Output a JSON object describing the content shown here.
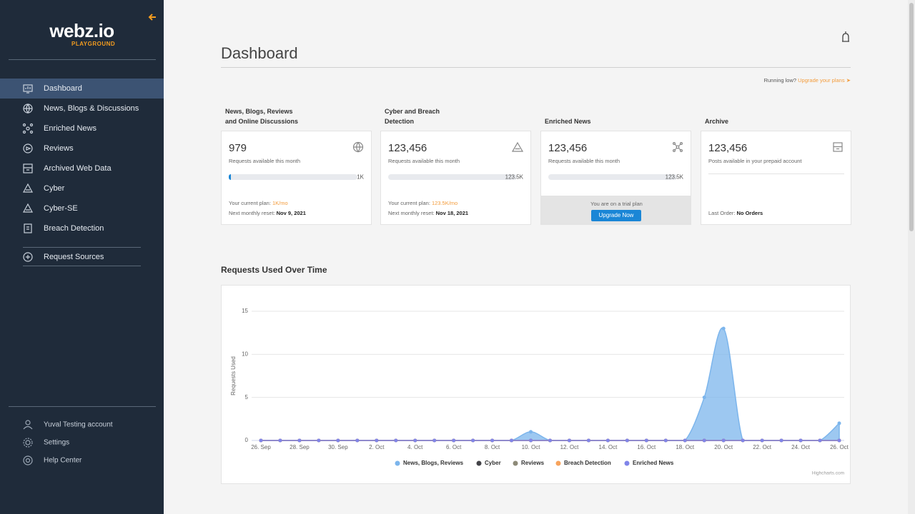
{
  "sidebar": {
    "logo": "webz.io",
    "logo_sub": "PLAYGROUND",
    "nav": [
      "Dashboard",
      "News, Blogs & Discussions",
      "Enriched News",
      "Reviews",
      "Archived Web Data",
      "Cyber",
      "Cyber-SE",
      "Breach Detection"
    ],
    "request_sources": "Request Sources",
    "footer": [
      "Yuval Testing account",
      "Settings",
      "Help Center"
    ]
  },
  "header": {
    "title": "Dashboard",
    "notice": "Running low?",
    "notice_link": "Upgrade your plans"
  },
  "cards": [
    {
      "title": "News, Blogs, Reviews and Online Discussions",
      "value": "979",
      "caption": "Requests available this month",
      "limit": "1K",
      "plan_label": "Your current plan:",
      "plan": "1K/mo",
      "reset_label": "Next monthly reset:",
      "reset": "Nov 9, 2021"
    },
    {
      "title": "Cyber and Breach Detection",
      "value": "123,456",
      "caption": "Requests available this month",
      "limit": "123.5K",
      "plan_label": "Your current plan:",
      "plan": "123.5K/mo",
      "reset_label": "Next monthly reset:",
      "reset": "Nov 18, 2021"
    },
    {
      "title": "Enriched News",
      "value": "123,456",
      "caption": "Requests available this month",
      "limit": "123.5K",
      "trial": "You are on a trial plan",
      "button": "Upgrade Now"
    },
    {
      "title": "Archive",
      "value": "123,456",
      "caption": "Posts available in your prepaid account",
      "order_label": "Last Order:",
      "order": "No Orders"
    }
  ],
  "chart_data": {
    "type": "area",
    "title": "Requests Used Over Time",
    "y_label": "Requests Used",
    "credits": "Highcharts.com",
    "categories": [
      "26. Sep",
      null,
      "28. Sep",
      null,
      "30. Sep",
      null,
      "2. Oct",
      null,
      "4. Oct",
      null,
      "6. Oct",
      null,
      "8. Oct",
      null,
      "10. Oct",
      null,
      "12. Oct",
      null,
      "14. Oct",
      null,
      "16. Oct",
      null,
      "18. Oct",
      null,
      "20. Oct",
      null,
      "22. Oct",
      null,
      "24. Oct",
      null,
      "26. Oct"
    ],
    "series": [
      {
        "name": "News, Blogs, Reviews",
        "color": "#7cb5ec",
        "values": [
          0,
          0,
          0,
          0,
          0,
          0,
          0,
          0,
          0,
          0,
          0,
          0,
          0,
          0,
          1,
          0,
          0,
          0,
          0,
          0,
          0,
          0,
          0,
          5,
          13,
          0,
          0,
          0,
          0,
          0,
          2
        ]
      },
      {
        "name": "Cyber",
        "color": "#434348",
        "values": [
          0,
          0,
          0,
          0,
          0,
          0,
          0,
          0,
          0,
          0,
          0,
          0,
          0,
          0,
          0,
          0,
          0,
          0,
          0,
          0,
          0,
          0,
          0,
          0,
          0,
          0,
          0,
          0,
          0,
          0,
          0
        ]
      },
      {
        "name": "Reviews",
        "color": "#8d8a78",
        "values": [
          0,
          0,
          0,
          0,
          0,
          0,
          0,
          0,
          0,
          0,
          0,
          0,
          0,
          0,
          0,
          0,
          0,
          0,
          0,
          0,
          0,
          0,
          0,
          0,
          0,
          0,
          0,
          0,
          0,
          0,
          0
        ]
      },
      {
        "name": "Breach Detection",
        "color": "#f7a35c",
        "values": [
          0,
          0,
          0,
          0,
          0,
          0,
          0,
          0,
          0,
          0,
          0,
          0,
          0,
          0,
          0,
          0,
          0,
          0,
          0,
          0,
          0,
          0,
          0,
          0,
          0,
          0,
          0,
          0,
          0,
          0,
          0
        ]
      },
      {
        "name": "Enriched News",
        "color": "#8085e9",
        "values": [
          0,
          0,
          0,
          0,
          0,
          0,
          0,
          0,
          0,
          0,
          0,
          0,
          0,
          0,
          0,
          0,
          0,
          0,
          0,
          0,
          0,
          0,
          0,
          0,
          0,
          0,
          0,
          0,
          0,
          0,
          0
        ]
      }
    ],
    "ylim": [
      0,
      15
    ],
    "yticks": [
      0,
      5,
      10,
      15
    ],
    "grid": true
  }
}
